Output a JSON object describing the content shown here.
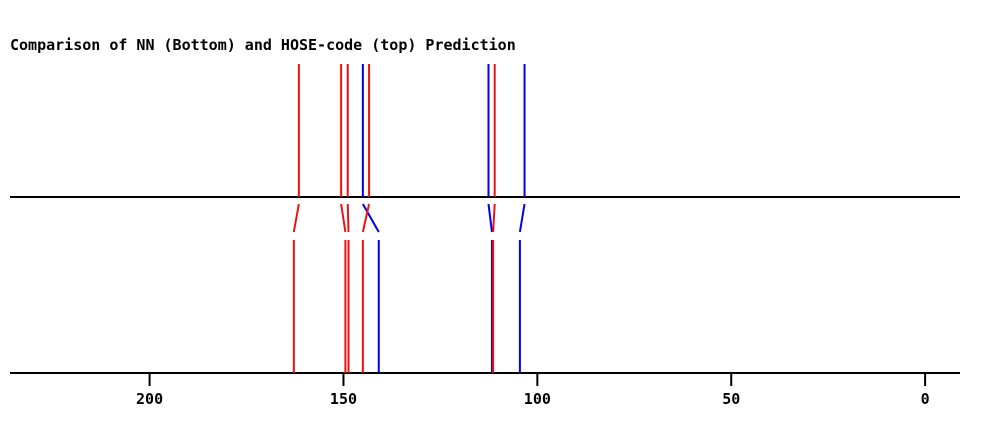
{
  "chart_data": {
    "type": "line",
    "title": "Comparison of NN (Bottom) and HOSE-code (top) Prediction",
    "xlabel": "",
    "ylabel": "",
    "xlim": [
      236,
      -9
    ],
    "x_ticks": [
      {
        "value": 200,
        "label": "200"
      },
      {
        "value": 150,
        "label": "150"
      },
      {
        "value": 100,
        "label": "100"
      },
      {
        "value": 50,
        "label": "50"
      },
      {
        "value": 0,
        "label": "0"
      }
    ],
    "colors": {
      "red": "#ee1111",
      "blue": "#0000ee",
      "axis": "#000000"
    },
    "series": [
      {
        "peaks": [
          {
            "top": 161.5,
            "bottom": 162.8,
            "color": "red"
          },
          {
            "top": 150.6,
            "bottom": 149.5,
            "color": "red"
          },
          {
            "top": 148.9,
            "bottom": 148.7,
            "color": "red"
          },
          {
            "top": 145.0,
            "bottom": 140.9,
            "color": "blue"
          },
          {
            "top": 143.4,
            "bottom": 145.0,
            "color": "red"
          },
          {
            "top": 112.6,
            "bottom": 111.7,
            "color": "blue"
          },
          {
            "top": 111.0,
            "bottom": 111.4,
            "color": "red"
          },
          {
            "top": 103.3,
            "bottom": 104.5,
            "color": "blue"
          }
        ]
      }
    ],
    "grid": false,
    "legend": "none"
  }
}
